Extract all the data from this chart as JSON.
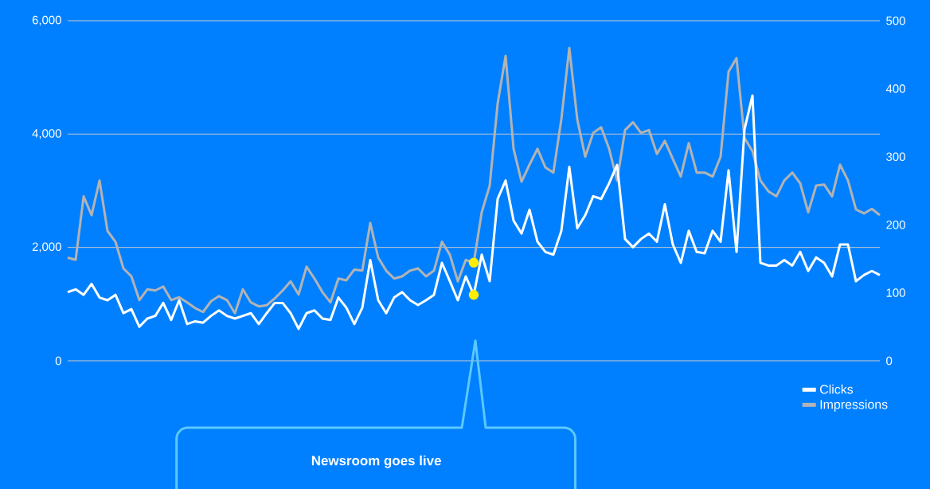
{
  "chart_data": {
    "type": "line",
    "categories": [
      null,
      null,
      null,
      null,
      null,
      null,
      null,
      null,
      null,
      null,
      null,
      null,
      null,
      null,
      null,
      null,
      null,
      null,
      null,
      null,
      null,
      null,
      null,
      null,
      null,
      null,
      null,
      null,
      null,
      null,
      null,
      null,
      null,
      null,
      null,
      null,
      null,
      null,
      null,
      null,
      null,
      null,
      null,
      null,
      null,
      null,
      null,
      null,
      null,
      null,
      null,
      null,
      null,
      null,
      null,
      null,
      null,
      null,
      null,
      null,
      null,
      null,
      null,
      null,
      null,
      null,
      null,
      null,
      null,
      null,
      null,
      null,
      null,
      null,
      null,
      null,
      null,
      null,
      null,
      null,
      null,
      null,
      null,
      null,
      null,
      null,
      null,
      null,
      null,
      null,
      null,
      null,
      null,
      null,
      null,
      null,
      null,
      null,
      null,
      null,
      null,
      null,
      null
    ],
    "series": [
      {
        "name": "Clicks",
        "color": "#ffffff",
        "axis": "y2",
        "values": [
          101,
          105,
          97,
          113,
          93,
          89,
          97,
          70,
          76,
          50,
          62,
          66,
          85,
          60,
          89,
          54,
          58,
          56,
          66,
          74,
          66,
          62,
          66,
          70,
          54,
          70,
          85,
          85,
          70,
          47,
          70,
          74,
          62,
          60,
          93,
          78,
          54,
          78,
          148,
          89,
          70,
          93,
          101,
          89,
          82,
          89,
          97,
          144,
          117,
          89,
          124,
          97,
          156,
          117,
          238,
          265,
          206,
          187,
          222,
          175,
          160,
          156,
          191,
          285,
          195,
          214,
          242,
          238,
          261,
          288,
          179,
          167,
          179,
          187,
          175,
          230,
          171,
          144,
          191,
          160,
          158,
          191,
          175,
          280,
          160,
          340,
          390,
          144,
          140,
          140,
          148,
          140,
          160,
          132,
          152,
          144,
          124,
          171,
          171,
          117,
          126,
          132,
          126
        ]
      },
      {
        "name": "Impressions",
        "color": "#b3b3b3",
        "values": [
          1820,
          1780,
          2900,
          2570,
          3180,
          2290,
          2100,
          1630,
          1490,
          1070,
          1260,
          1240,
          1310,
          1070,
          1120,
          1030,
          930,
          860,
          1050,
          1140,
          1070,
          840,
          1260,
          1030,
          960,
          980,
          1100,
          1240,
          1400,
          1170,
          1660,
          1450,
          1210,
          1030,
          1450,
          1420,
          1610,
          1590,
          2430,
          1820,
          1590,
          1450,
          1490,
          1590,
          1630,
          1490,
          1590,
          2100,
          1870,
          1400,
          1780,
          1730,
          2620,
          3090,
          4540,
          5380,
          3740,
          3160,
          3460,
          3740,
          3410,
          3320,
          4260,
          5520,
          4260,
          3600,
          4020,
          4120,
          3740,
          3180,
          4070,
          4210,
          4020,
          4070,
          3650,
          3880,
          3560,
          3250,
          3840,
          3320,
          3320,
          3250,
          3600,
          5100,
          5340,
          3930,
          3700,
          3180,
          2990,
          2900,
          3180,
          3320,
          3130,
          2620,
          3090,
          3110,
          2900,
          3460,
          3180,
          2670,
          2600,
          2680,
          2570
        ]
      },
      {
        "type": "scatter",
        "color": "#ffee00",
        "marker": "circle",
        "values": [
          null,
          null,
          null,
          null,
          null,
          null,
          null,
          null,
          null,
          null,
          null,
          null,
          null,
          null,
          null,
          null,
          null,
          null,
          null,
          null,
          null,
          null,
          null,
          null,
          null,
          null,
          null,
          null,
          null,
          null,
          null,
          null,
          null,
          null,
          null,
          null,
          null,
          null,
          null,
          null,
          null,
          null,
          null,
          null,
          null,
          null,
          null,
          null,
          null,
          null,
          null,
          1730,
          null,
          null,
          null,
          null,
          null,
          null,
          null,
          null,
          null,
          null,
          null,
          null,
          null,
          null,
          null,
          null,
          null,
          null,
          null,
          null,
          null,
          null,
          null,
          null,
          null,
          null,
          null,
          null,
          null,
          null,
          null,
          null,
          null,
          null,
          null,
          null,
          null,
          null,
          null,
          null,
          null,
          null,
          null,
          null,
          null,
          null,
          null,
          null,
          null,
          null,
          null
        ]
      },
      {
        "type": "scatter",
        "color": "#ffee00",
        "marker": "circle",
        "axis": "y2",
        "values": [
          null,
          null,
          null,
          null,
          null,
          null,
          null,
          null,
          null,
          null,
          null,
          null,
          null,
          null,
          null,
          null,
          null,
          null,
          null,
          null,
          null,
          null,
          null,
          null,
          null,
          null,
          null,
          null,
          null,
          null,
          null,
          null,
          null,
          null,
          null,
          null,
          null,
          null,
          null,
          null,
          null,
          null,
          null,
          null,
          null,
          null,
          null,
          null,
          null,
          null,
          null,
          97,
          null,
          null,
          null,
          null,
          null,
          null,
          null,
          null,
          null,
          null,
          null,
          null,
          null,
          null,
          null,
          null,
          null,
          null,
          null,
          null,
          null,
          null,
          null,
          null,
          null,
          null,
          null,
          null,
          null,
          null,
          null,
          null,
          null,
          null,
          null,
          null,
          null,
          null,
          null,
          null,
          null,
          null,
          null,
          null,
          null,
          null,
          null,
          null,
          null,
          null,
          null
        ]
      }
    ],
    "ylim": [
      0,
      6000
    ],
    "yticks": [
      0,
      {
        "value": 2000,
        "label": "2,000"
      },
      {
        "value": 4000,
        "label": "4,000"
      },
      {
        "value": 6000,
        "label": "6,000"
      }
    ],
    "y2lim": [
      0,
      500
    ],
    "y2ticks": [
      0,
      100,
      200,
      300,
      400,
      500
    ],
    "grid": "y",
    "legend": "bottom right",
    "annotations": [
      "Newsroom goes live"
    ]
  }
}
